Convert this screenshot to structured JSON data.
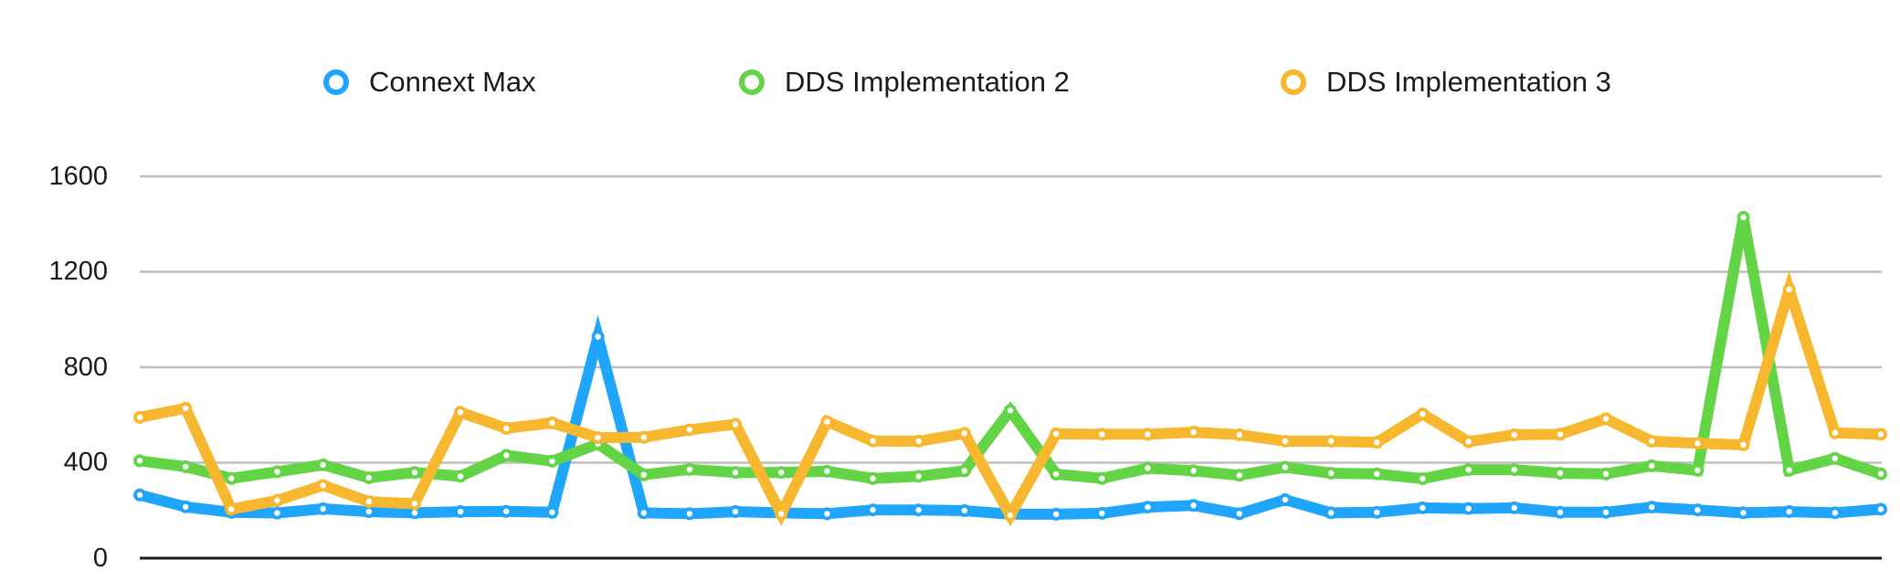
{
  "chart_data": {
    "type": "line",
    "title": "",
    "xlabel": "",
    "ylabel": "",
    "ylim": [
      0,
      1600
    ],
    "yticks": [
      0,
      400,
      800,
      1200,
      1600
    ],
    "grid": true,
    "legend_position": "top",
    "x": [
      1,
      2,
      3,
      4,
      5,
      6,
      7,
      8,
      9,
      10,
      11,
      12,
      13,
      14,
      15,
      16,
      17,
      18,
      19,
      20,
      21,
      22,
      23,
      24,
      25,
      26,
      27,
      28,
      29,
      30,
      31,
      32,
      33,
      34,
      35,
      36,
      37,
      38,
      39
    ],
    "series": [
      {
        "name": "Connext Max",
        "color": "#1fa5fb",
        "values": [
          265,
          215,
          192,
          189,
          207,
          195,
          190,
          195,
          196,
          192,
          928,
          190,
          186,
          195,
          190,
          186,
          202,
          202,
          199,
          184,
          184,
          188,
          214,
          221,
          186,
          245,
          190,
          192,
          211,
          208,
          211,
          192,
          192,
          214,
          202,
          190,
          195,
          190,
          205
        ]
      },
      {
        "name": "DDS Implementation 2",
        "color": "#62d446",
        "values": [
          408,
          383,
          334,
          362,
          391,
          337,
          359,
          343,
          431,
          406,
          479,
          349,
          372,
          359,
          359,
          364,
          334,
          343,
          366,
          619,
          352,
          334,
          377,
          366,
          347,
          381,
          356,
          353,
          333,
          371,
          371,
          356,
          353,
          387,
          368,
          1428,
          368,
          418,
          353
        ]
      },
      {
        "name": "DDS Implementation 3",
        "color": "#f7b82f",
        "values": [
          590,
          628,
          205,
          242,
          305,
          237,
          228,
          611,
          544,
          567,
          505,
          506,
          538,
          561,
          185,
          572,
          491,
          490,
          523,
          180,
          521,
          519,
          519,
          528,
          517,
          490,
          490,
          485,
          604,
          488,
          517,
          519,
          584,
          490,
          481,
          475,
          1126,
          525,
          519
        ]
      }
    ]
  },
  "legend": {
    "items": [
      {
        "label": "Connext Max",
        "color": "#1fa5fb"
      },
      {
        "label": "DDS Implementation 2",
        "color": "#62d446"
      },
      {
        "label": "DDS Implementation 3",
        "color": "#f7b82f"
      }
    ]
  },
  "axis": {
    "y_labels": [
      "0",
      "400",
      "800",
      "1200",
      "1600"
    ],
    "gridline_color": "#bdbdbd",
    "baseline_color": "#1a1a1a"
  }
}
